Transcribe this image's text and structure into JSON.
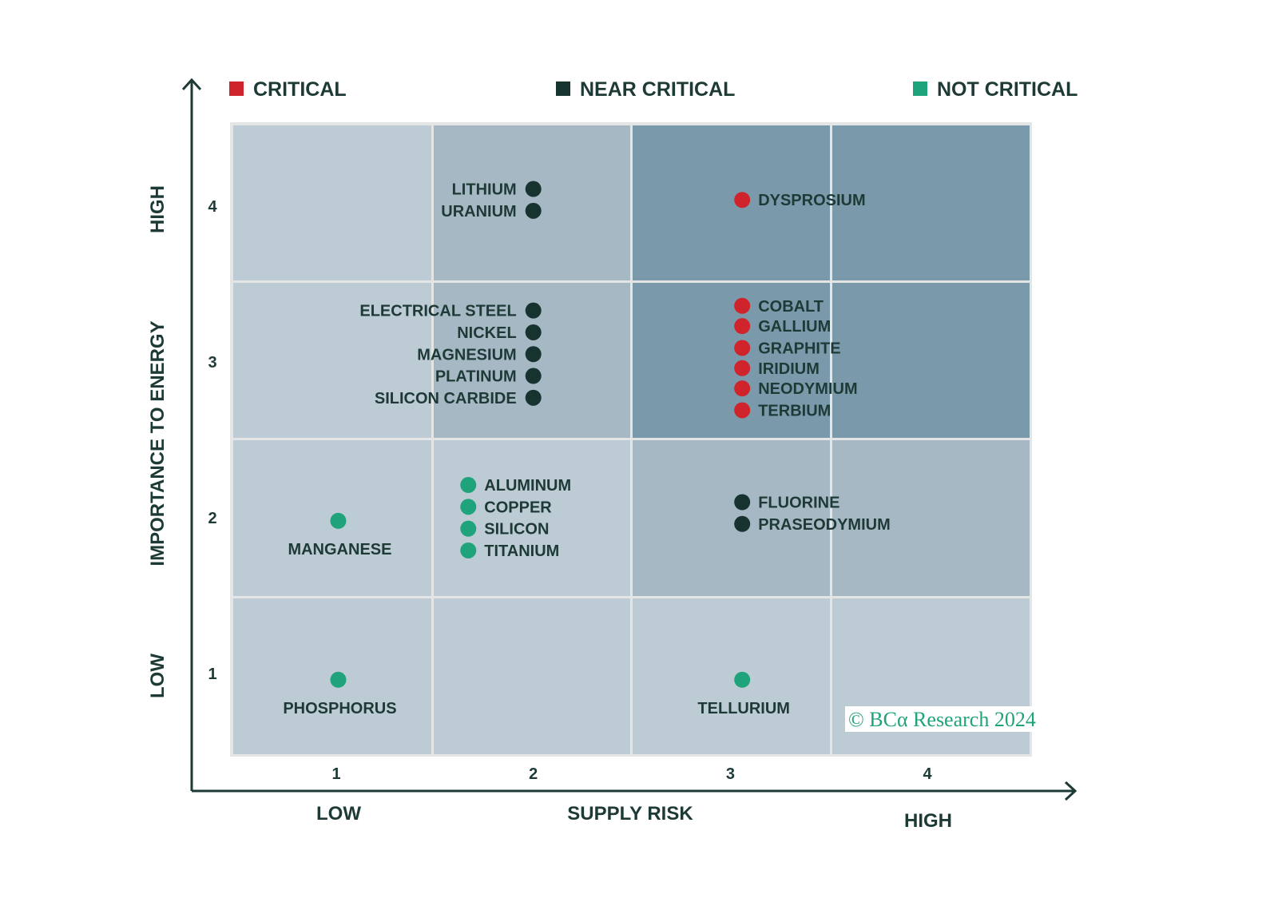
{
  "chart_data": {
    "type": "scatter",
    "title": "",
    "xlabel": "SUPPLY RISK",
    "ylabel": "IMPORTANCE TO ENERGY",
    "x_low_label": "LOW",
    "x_high_label": "HIGH",
    "y_low_label": "LOW",
    "y_high_label": "HIGH",
    "xlim": [
      0.5,
      4.5
    ],
    "ylim": [
      0.5,
      4.5
    ],
    "x_ticks": [
      "1",
      "2",
      "3",
      "4"
    ],
    "y_ticks": [
      "1",
      "2",
      "3",
      "4"
    ],
    "legend_placement": "top",
    "legend": [
      {
        "key": "critical",
        "label": "CRITICAL",
        "color": "#d0242d"
      },
      {
        "key": "near",
        "label": "NEAR CRITICAL",
        "color": "#17332f"
      },
      {
        "key": "not",
        "label": "NOT CRITICAL",
        "color": "#1fa37a"
      }
    ],
    "cell_shading_rows_top_to_bottom": [
      [
        0,
        1,
        2,
        2
      ],
      [
        0,
        1,
        2,
        2
      ],
      [
        0,
        0,
        1,
        1
      ],
      [
        0,
        0,
        0,
        0
      ]
    ],
    "shade_colors": [
      "#bdcbd5",
      "#a7b8c5",
      "#7a9aab"
    ],
    "points": [
      {
        "name": "LITHIUM",
        "x": 2.0,
        "y": 4.11,
        "category": "near",
        "label_side": "left"
      },
      {
        "name": "URANIUM",
        "x": 2.0,
        "y": 3.97,
        "category": "near",
        "label_side": "left"
      },
      {
        "name": "DYSPROSIUM",
        "x": 3.06,
        "y": 4.04,
        "category": "critical",
        "label_side": "right"
      },
      {
        "name": "ELECTRICAL STEEL",
        "x": 2.0,
        "y": 3.33,
        "category": "near",
        "label_side": "left"
      },
      {
        "name": "NICKEL",
        "x": 2.0,
        "y": 3.19,
        "category": "near",
        "label_side": "left"
      },
      {
        "name": "MAGNESIUM",
        "x": 2.0,
        "y": 3.05,
        "category": "near",
        "label_side": "left"
      },
      {
        "name": "PLATINUM",
        "x": 2.0,
        "y": 2.91,
        "category": "near",
        "label_side": "left"
      },
      {
        "name": "SILICON CARBIDE",
        "x": 2.0,
        "y": 2.77,
        "category": "near",
        "label_side": "left"
      },
      {
        "name": "COBALT",
        "x": 3.06,
        "y": 3.36,
        "category": "critical",
        "label_side": "right"
      },
      {
        "name": "GALLIUM",
        "x": 3.06,
        "y": 3.23,
        "category": "critical",
        "label_side": "right"
      },
      {
        "name": "GRAPHITE",
        "x": 3.06,
        "y": 3.09,
        "category": "critical",
        "label_side": "right"
      },
      {
        "name": "IRIDIUM",
        "x": 3.06,
        "y": 2.96,
        "category": "critical",
        "label_side": "right"
      },
      {
        "name": "NEODYMIUM",
        "x": 3.06,
        "y": 2.83,
        "category": "critical",
        "label_side": "right"
      },
      {
        "name": "TERBIUM",
        "x": 3.06,
        "y": 2.69,
        "category": "critical",
        "label_side": "right"
      },
      {
        "name": "MANGANESE",
        "x": 1.01,
        "y": 1.98,
        "category": "not",
        "label_side": "below"
      },
      {
        "name": "ALUMINUM",
        "x": 1.67,
        "y": 2.21,
        "category": "not",
        "label_side": "right"
      },
      {
        "name": "COPPER",
        "x": 1.67,
        "y": 2.07,
        "category": "not",
        "label_side": "right"
      },
      {
        "name": "SILICON",
        "x": 1.67,
        "y": 1.93,
        "category": "not",
        "label_side": "right"
      },
      {
        "name": "TITANIUM",
        "x": 1.67,
        "y": 1.79,
        "category": "not",
        "label_side": "right"
      },
      {
        "name": "FLUORINE",
        "x": 3.06,
        "y": 2.1,
        "category": "near",
        "label_side": "right"
      },
      {
        "name": "PRASEODYMIUM",
        "x": 3.06,
        "y": 1.96,
        "category": "near",
        "label_side": "right"
      },
      {
        "name": "PHOSPHORUS",
        "x": 1.01,
        "y": 0.96,
        "category": "not",
        "label_side": "below"
      },
      {
        "name": "TELLURIUM",
        "x": 3.06,
        "y": 0.96,
        "category": "not",
        "label_side": "below"
      }
    ],
    "credit": "© BCα Research 2024"
  }
}
